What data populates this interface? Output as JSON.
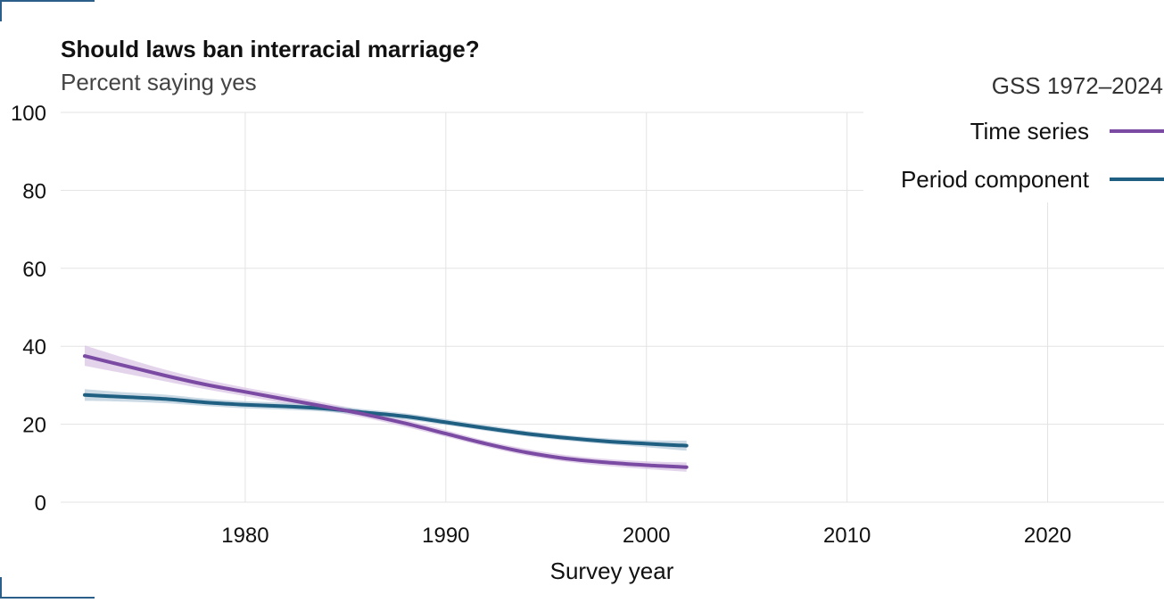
{
  "chart_data": {
    "type": "line",
    "title": "Should laws ban interracial marriage?",
    "subtitle": "Percent saying yes",
    "xlabel": "Survey year",
    "ylabel": "",
    "xlim": [
      1970.8,
      2025.8
    ],
    "ylim": [
      0,
      100
    ],
    "x_ticks": [
      "1980",
      "1990",
      "2000",
      "2010",
      "2020"
    ],
    "y_ticks": [
      "0",
      "20",
      "40",
      "60",
      "80",
      "100"
    ],
    "grid": true,
    "legend": {
      "title": "GSS 1972–2024",
      "placement": "top-right"
    },
    "series": [
      {
        "name": "Time series",
        "color": "#7b4ba3",
        "band_color": "#d9c6e6",
        "x": [
          1972,
          1974,
          1976,
          1978,
          1980,
          1982,
          1984,
          1986,
          1988,
          1990,
          1992,
          1994,
          1996,
          1998,
          2000,
          2002
        ],
        "values": [
          37.5,
          35.0,
          32.5,
          30.2,
          28.3,
          26.4,
          24.5,
          22.5,
          20.2,
          17.6,
          15.0,
          12.8,
          11.2,
          10.2,
          9.5,
          9.0
        ],
        "lower": [
          35.0,
          33.0,
          31.0,
          29.0,
          27.2,
          25.3,
          23.5,
          21.6,
          19.3,
          16.8,
          14.2,
          12.0,
          10.4,
          9.3,
          8.5,
          7.8
        ],
        "upper": [
          40.2,
          37.0,
          34.0,
          31.5,
          29.4,
          27.5,
          25.5,
          23.4,
          21.1,
          18.5,
          15.8,
          13.7,
          12.1,
          11.1,
          10.5,
          10.2
        ]
      },
      {
        "name": "Period component",
        "color": "#1f5f82",
        "band_color": "#b8ccdb",
        "x": [
          1972,
          1974,
          1976,
          1978,
          1980,
          1982,
          1984,
          1986,
          1988,
          1990,
          1992,
          1994,
          1996,
          1998,
          2000,
          2002
        ],
        "values": [
          27.5,
          27.0,
          26.5,
          25.6,
          25.0,
          24.6,
          24.0,
          23.0,
          22.0,
          20.5,
          19.0,
          17.6,
          16.5,
          15.6,
          15.0,
          14.5
        ],
        "lower": [
          26.0,
          25.8,
          25.4,
          24.7,
          24.1,
          23.7,
          23.2,
          22.2,
          21.2,
          19.8,
          18.3,
          16.9,
          15.8,
          14.9,
          14.1,
          13.2
        ],
        "upper": [
          29.0,
          28.2,
          27.6,
          26.6,
          25.9,
          25.5,
          24.9,
          23.8,
          22.8,
          21.3,
          19.8,
          18.3,
          17.2,
          16.4,
          15.9,
          15.8
        ]
      }
    ]
  }
}
